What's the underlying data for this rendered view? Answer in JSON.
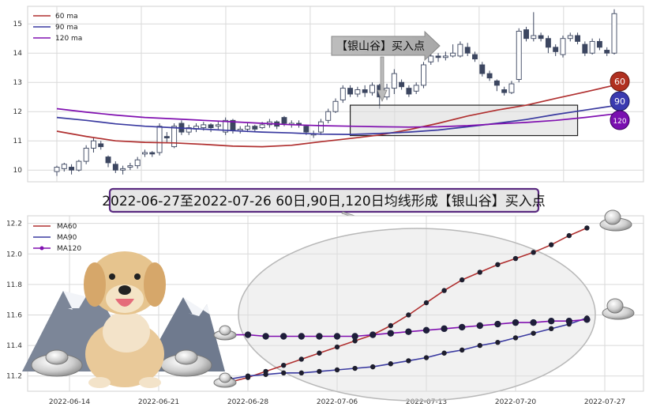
{
  "banner": "2022-06-27至2022-07-26 60日,90日,120日均线形成【银山谷】买入点",
  "arrow_label": "【银山谷】买入点",
  "badges": [
    "60",
    "90",
    "120"
  ],
  "colors": {
    "ma60": "#b03030",
    "ma90": "#3a3aa0",
    "ma120": "#8010b0",
    "candle_up_fill": "#ffffff",
    "candle_dn_fill": "#3c4660",
    "grid": "#d9d9d9"
  },
  "chart_data": [
    {
      "type": "candlestick",
      "legend": [
        "60 ma",
        "90 ma",
        "120 ma"
      ],
      "legend_position": "top-left",
      "ylim": [
        9.6,
        15.6
      ],
      "yticks": [
        10,
        11,
        12,
        13,
        14,
        15
      ],
      "grid": true,
      "candles": [
        [
          9.95,
          10.1,
          10.15,
          9.8
        ],
        [
          10.05,
          10.2,
          10.25,
          9.95
        ],
        [
          10.1,
          10.0,
          10.2,
          9.85
        ],
        [
          10.0,
          10.3,
          10.35,
          9.95
        ],
        [
          10.3,
          10.75,
          10.85,
          10.2
        ],
        [
          10.75,
          11.0,
          11.1,
          10.6
        ],
        [
          10.9,
          10.8,
          11.0,
          10.7
        ],
        [
          10.45,
          10.25,
          10.5,
          10.1
        ],
        [
          10.2,
          10.0,
          10.3,
          9.9
        ],
        [
          10.0,
          10.05,
          10.15,
          9.85
        ],
        [
          10.1,
          10.15,
          10.25,
          10.0
        ],
        [
          10.15,
          10.35,
          10.45,
          10.05
        ],
        [
          10.55,
          10.6,
          10.7,
          10.45
        ],
        [
          10.6,
          10.55,
          10.65,
          10.45
        ],
        [
          10.6,
          11.5,
          11.6,
          10.5
        ],
        [
          11.15,
          11.1,
          11.3,
          10.95
        ],
        [
          10.8,
          11.5,
          11.6,
          10.75
        ],
        [
          11.6,
          11.3,
          11.7,
          11.2
        ],
        [
          11.3,
          11.45,
          11.55,
          11.2
        ],
        [
          11.4,
          11.5,
          11.6,
          11.3
        ],
        [
          11.45,
          11.55,
          11.65,
          11.35
        ],
        [
          11.55,
          11.45,
          11.6,
          11.3
        ],
        [
          11.5,
          11.55,
          11.65,
          11.4
        ],
        [
          11.3,
          11.7,
          11.8,
          11.2
        ],
        [
          11.7,
          11.35,
          11.75,
          11.25
        ],
        [
          11.35,
          11.4,
          11.5,
          11.25
        ],
        [
          11.4,
          11.5,
          11.6,
          11.3
        ],
        [
          11.5,
          11.4,
          11.55,
          11.3
        ],
        [
          11.45,
          11.55,
          11.65,
          11.4
        ],
        [
          11.55,
          11.65,
          11.75,
          11.45
        ],
        [
          11.65,
          11.5,
          11.7,
          11.4
        ],
        [
          11.8,
          11.6,
          11.85,
          11.5
        ],
        [
          11.55,
          11.6,
          11.7,
          11.45
        ],
        [
          11.6,
          11.55,
          11.7,
          11.45
        ],
        [
          11.5,
          11.3,
          11.55,
          11.2
        ],
        [
          11.2,
          11.25,
          11.35,
          11.1
        ],
        [
          11.3,
          11.65,
          11.75,
          11.2
        ],
        [
          11.7,
          12.0,
          12.1,
          11.6
        ],
        [
          12.0,
          12.35,
          12.45,
          11.95
        ],
        [
          12.4,
          12.8,
          12.9,
          12.3
        ],
        [
          12.8,
          12.6,
          12.9,
          12.5
        ],
        [
          12.6,
          12.75,
          12.85,
          12.5
        ],
        [
          12.75,
          12.65,
          12.9,
          12.5
        ],
        [
          12.65,
          12.9,
          13.0,
          12.55
        ],
        [
          12.9,
          12.5,
          12.95,
          12.1
        ],
        [
          12.5,
          12.8,
          12.95,
          12.4
        ],
        [
          12.8,
          13.3,
          13.45,
          12.6
        ],
        [
          13.0,
          12.85,
          13.1,
          12.75
        ],
        [
          12.8,
          12.6,
          12.9,
          12.5
        ],
        [
          12.7,
          12.9,
          13.0,
          12.6
        ],
        [
          12.9,
          13.6,
          13.7,
          12.8
        ],
        [
          13.7,
          13.9,
          14.0,
          13.6
        ],
        [
          13.9,
          13.85,
          14.0,
          13.7
        ],
        [
          13.85,
          13.9,
          14.05,
          13.75
        ],
        [
          13.9,
          14.0,
          14.3,
          13.85
        ],
        [
          13.9,
          14.3,
          14.4,
          13.85
        ],
        [
          14.2,
          14.0,
          14.35,
          13.9
        ],
        [
          13.95,
          13.8,
          14.05,
          13.7
        ],
        [
          13.6,
          13.3,
          13.7,
          13.2
        ],
        [
          13.3,
          13.15,
          13.4,
          13.05
        ],
        [
          13.05,
          12.9,
          13.1,
          12.7
        ],
        [
          12.75,
          12.65,
          12.85,
          12.55
        ],
        [
          12.65,
          12.95,
          13.05,
          12.6
        ],
        [
          13.1,
          14.75,
          14.85,
          13.0
        ],
        [
          14.8,
          14.5,
          14.9,
          14.4
        ],
        [
          14.5,
          14.6,
          15.4,
          14.4
        ],
        [
          14.6,
          14.5,
          14.7,
          14.4
        ],
        [
          14.5,
          14.2,
          14.6,
          14.0
        ],
        [
          14.2,
          14.05,
          14.3,
          13.9
        ],
        [
          13.95,
          14.5,
          14.6,
          13.85
        ],
        [
          14.5,
          14.6,
          14.7,
          14.4
        ],
        [
          14.6,
          14.4,
          14.7,
          14.3
        ],
        [
          14.3,
          14.0,
          14.4,
          13.9
        ],
        [
          14.0,
          14.4,
          14.5,
          13.95
        ],
        [
          14.4,
          14.2,
          14.5,
          14.1
        ],
        [
          14.1,
          14.0,
          14.2,
          13.9
        ],
        [
          14.0,
          15.35,
          15.5,
          13.95
        ]
      ],
      "ma60": [
        11.33,
        11.15,
        11.0,
        10.95,
        10.93,
        10.88,
        10.82,
        10.8,
        10.85,
        10.97,
        11.08,
        11.2,
        11.38,
        11.6,
        11.85,
        12.05,
        12.22,
        12.45,
        12.67,
        12.9
      ],
      "ma90": [
        11.8,
        11.7,
        11.58,
        11.5,
        11.45,
        11.4,
        11.35,
        11.3,
        11.27,
        11.23,
        11.22,
        11.25,
        11.3,
        11.37,
        11.48,
        11.6,
        11.73,
        11.9,
        12.05,
        12.2
      ],
      "ma120": [
        12.1,
        11.98,
        11.88,
        11.8,
        11.75,
        11.7,
        11.65,
        11.6,
        11.55,
        11.52,
        11.5,
        11.48,
        11.47,
        11.48,
        11.52,
        11.58,
        11.63,
        11.7,
        11.8,
        11.92
      ],
      "box_ylim": [
        11.18,
        12.22
      ]
    },
    {
      "type": "line",
      "legend": [
        "MA60",
        "MA90",
        "MA120"
      ],
      "legend_position": "top-left",
      "ylim": [
        11.1,
        12.25
      ],
      "yticks": [
        11.2,
        11.4,
        11.6,
        11.8,
        12.0,
        12.2
      ],
      "grid": true,
      "x_tick_labels": [
        "2022-06-14",
        "2022-06-21",
        "2022-06-28",
        "2022-07-06",
        "2022-07-13",
        "2022-07-20",
        "2022-07-27"
      ],
      "x_tick_positions": [
        0,
        5,
        10,
        15,
        20,
        25,
        30
      ],
      "series": [
        {
          "name": "MA60",
          "x": [
            9,
            10,
            11,
            12,
            13,
            14,
            15,
            16,
            17,
            18,
            19,
            20,
            21,
            22,
            23,
            24,
            25,
            26,
            27,
            28,
            29
          ],
          "values": [
            11.16,
            11.19,
            11.23,
            11.27,
            11.31,
            11.35,
            11.39,
            11.43,
            11.47,
            11.53,
            11.6,
            11.68,
            11.76,
            11.83,
            11.88,
            11.93,
            11.97,
            12.01,
            12.06,
            12.12,
            12.17
          ]
        },
        {
          "name": "MA90",
          "x": [
            9,
            10,
            11,
            12,
            13,
            14,
            15,
            16,
            17,
            18,
            19,
            20,
            21,
            22,
            23,
            24,
            25,
            26,
            27,
            28,
            29
          ],
          "values": [
            11.18,
            11.2,
            11.21,
            11.22,
            11.22,
            11.23,
            11.24,
            11.25,
            11.26,
            11.28,
            11.3,
            11.32,
            11.35,
            11.37,
            11.4,
            11.42,
            11.45,
            11.48,
            11.51,
            11.54,
            11.58
          ]
        },
        {
          "name": "MA120",
          "x": [
            9,
            10,
            11,
            12,
            13,
            14,
            15,
            16,
            17,
            18,
            19,
            20,
            21,
            22,
            23,
            24,
            25,
            26,
            27,
            28,
            29
          ],
          "values": [
            11.47,
            11.47,
            11.46,
            11.46,
            11.46,
            11.46,
            11.46,
            11.46,
            11.47,
            11.48,
            11.49,
            11.5,
            11.51,
            11.52,
            11.53,
            11.54,
            11.55,
            11.55,
            11.56,
            11.56,
            11.57
          ]
        }
      ]
    }
  ]
}
